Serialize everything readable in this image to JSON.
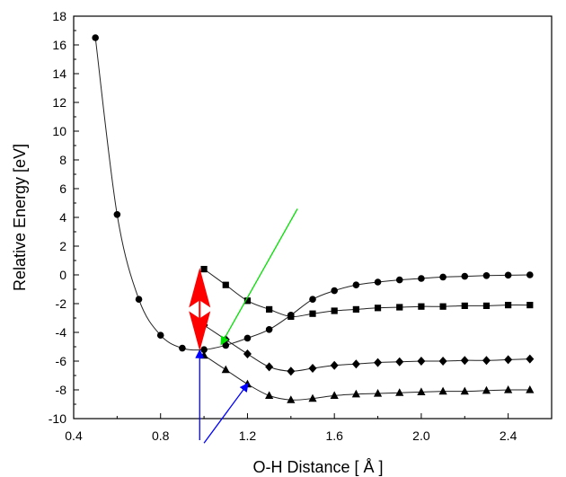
{
  "chart_data": {
    "type": "line",
    "xlabel": "O-H Distance [ Å ]",
    "ylabel": "Relative Energy [eV]",
    "xlim": [
      0.4,
      2.6
    ],
    "ylim": [
      -10,
      18
    ],
    "xticks": [
      "0.4",
      "0.8",
      "1.2",
      "1.6",
      "2.0",
      "2.4"
    ],
    "yticks": [
      "-10",
      "-8",
      "-6",
      "-4",
      "-2",
      "0",
      "2",
      "4",
      "6",
      "8",
      "10",
      "12",
      "14",
      "16",
      "18"
    ],
    "grid": false,
    "legend": "none",
    "series": [
      {
        "marker": "circle",
        "x": [
          0.5,
          0.6,
          0.7,
          0.8,
          0.9,
          1.0,
          1.1,
          1.2,
          1.3,
          1.4,
          1.5,
          1.6,
          1.7,
          1.8,
          1.9,
          2.0,
          2.1,
          2.2,
          2.3,
          2.4,
          2.5
        ],
        "y": [
          16.5,
          4.2,
          -1.7,
          -4.2,
          -5.1,
          -5.2,
          -4.9,
          -4.4,
          -3.8,
          -2.8,
          -1.7,
          -1.1,
          -0.7,
          -0.5,
          -0.35,
          -0.25,
          -0.15,
          -0.1,
          -0.05,
          -0.02,
          0.0
        ]
      },
      {
        "marker": "square",
        "x": [
          1.0,
          1.1,
          1.2,
          1.3,
          1.4,
          1.5,
          1.6,
          1.7,
          1.8,
          1.9,
          2.0,
          2.1,
          2.2,
          2.3,
          2.4,
          2.5
        ],
        "y": [
          0.4,
          -0.7,
          -1.8,
          -2.4,
          -2.9,
          -2.7,
          -2.5,
          -2.4,
          -2.3,
          -2.25,
          -2.2,
          -2.2,
          -2.15,
          -2.15,
          -2.1,
          -2.1
        ]
      },
      {
        "marker": "diamond",
        "x": [
          1.0,
          1.1,
          1.2,
          1.3,
          1.4,
          1.5,
          1.6,
          1.7,
          1.8,
          1.9,
          2.0,
          2.1,
          2.2,
          2.3,
          2.4,
          2.5
        ],
        "y": [
          -3.5,
          -4.5,
          -5.5,
          -6.4,
          -6.7,
          -6.5,
          -6.3,
          -6.2,
          -6.1,
          -6.05,
          -6.0,
          -6.0,
          -5.95,
          -5.95,
          -5.9,
          -5.85
        ]
      },
      {
        "marker": "triangle",
        "x": [
          1.0,
          1.1,
          1.2,
          1.3,
          1.4,
          1.5,
          1.6,
          1.7,
          1.8,
          1.9,
          2.0,
          2.1,
          2.2,
          2.3,
          2.4,
          2.5
        ],
        "y": [
          -5.6,
          -6.6,
          -7.6,
          -8.4,
          -8.7,
          -8.6,
          -8.4,
          -8.3,
          -8.25,
          -8.2,
          -8.15,
          -8.1,
          -8.1,
          -8.05,
          -8.0,
          -8.0
        ]
      }
    ],
    "annotations": [
      {
        "type": "double-arrow",
        "color": "#ff0000",
        "x": 0.98,
        "y_from": -5.3,
        "y_to": 0.5
      },
      {
        "type": "arrow",
        "color": "#00e000",
        "from": [
          1.43,
          4.6
        ],
        "to": [
          1.08,
          -4.8
        ]
      },
      {
        "type": "arrow",
        "color": "#0000ff",
        "from": [
          0.98,
          -11.5
        ],
        "to": [
          0.98,
          -5.3
        ]
      },
      {
        "type": "arrow",
        "color": "#0000ff",
        "from": [
          1.0,
          -11.7
        ],
        "to": [
          1.2,
          -7.6
        ]
      }
    ],
    "colors": {
      "series": "#000000",
      "axis": "#000000"
    }
  }
}
